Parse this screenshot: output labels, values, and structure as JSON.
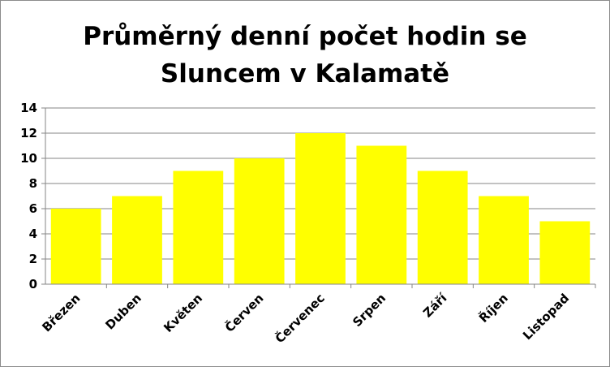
{
  "chart_data": {
    "type": "bar",
    "title_lines": [
      "Průměrný denní počet hodin se",
      "Sluncem v Kalamatě"
    ],
    "categories": [
      "Březen",
      "Duben",
      "Květen",
      "Červen",
      "Červenec",
      "Srpen",
      "Září",
      "Říjen",
      "Listopad"
    ],
    "values": [
      6,
      7,
      9,
      10,
      12,
      11,
      9,
      7,
      5
    ],
    "ylim": [
      0,
      14
    ],
    "yticks": [
      "0",
      "2",
      "4",
      "6",
      "8",
      "10",
      "12",
      "14"
    ],
    "xlabel": "",
    "ylabel": "",
    "grid": true,
    "legend": "none",
    "bar_color": "#ffff00",
    "grid_color": "#868686"
  }
}
